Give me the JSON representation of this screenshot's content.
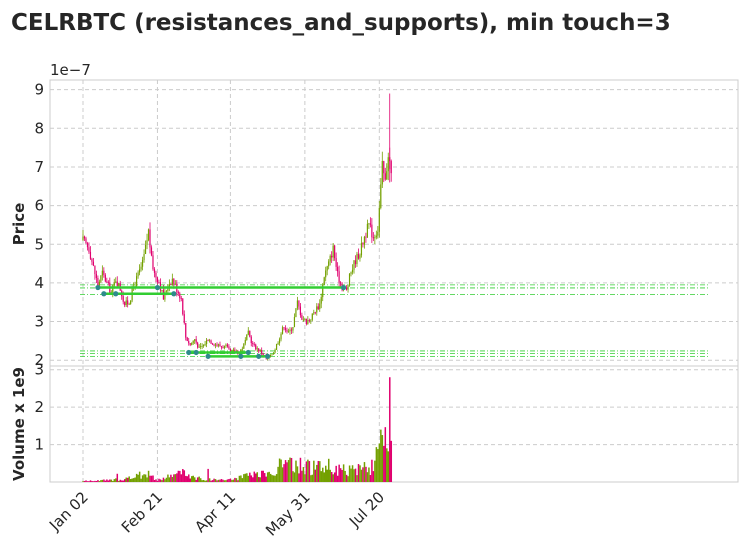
{
  "chart_data": {
    "type": "candlestick",
    "title": "CELRBTC (resistances_and_supports), min touch=3",
    "price_panel": {
      "ylabel": "Price",
      "multiplier_label": "1e−7",
      "ylim": [
        1.85,
        9.25
      ],
      "yticks": [
        2,
        3,
        4,
        5,
        6,
        7,
        8,
        9
      ],
      "grid": true
    },
    "volume_panel": {
      "ylabel": "Volume x 1e9",
      "ylim": [
        0,
        3.1
      ],
      "yticks": [
        1,
        2,
        3
      ],
      "grid": true
    },
    "x_ticks": [
      {
        "label": "Jan 02",
        "day": 0
      },
      {
        "label": "Feb 21",
        "day": 50
      },
      {
        "label": "Apr 11",
        "day": 99
      },
      {
        "label": "May 31",
        "day": 149
      },
      {
        "label": "Jul 20",
        "day": 199
      }
    ],
    "colors": {
      "up": "#73a000",
      "down": "#e0006e",
      "level": "#32cd32",
      "touch": "#2e8b8b"
    },
    "price_path": [
      [
        0,
        5.1
      ],
      [
        4,
        4.9
      ],
      [
        7,
        4.4
      ],
      [
        10,
        3.95
      ],
      [
        13,
        4.25
      ],
      [
        16,
        4.0
      ],
      [
        19,
        3.75
      ],
      [
        22,
        4.1
      ],
      [
        25,
        3.85
      ],
      [
        28,
        3.45
      ],
      [
        31,
        3.5
      ],
      [
        34,
        3.9
      ],
      [
        37,
        4.2
      ],
      [
        40,
        4.5
      ],
      [
        42,
        4.9
      ],
      [
        44,
        5.35
      ],
      [
        46,
        4.6
      ],
      [
        48,
        4.25
      ],
      [
        51,
        4.05
      ],
      [
        54,
        3.6
      ],
      [
        57,
        3.95
      ],
      [
        60,
        4.1
      ],
      [
        63,
        3.85
      ],
      [
        66,
        3.6
      ],
      [
        69,
        2.6
      ],
      [
        72,
        2.4
      ],
      [
        75,
        2.55
      ],
      [
        78,
        2.3
      ],
      [
        81,
        2.4
      ],
      [
        84,
        2.55
      ],
      [
        87,
        2.45
      ],
      [
        90,
        2.4
      ],
      [
        93,
        2.35
      ],
      [
        96,
        2.35
      ],
      [
        99,
        2.2
      ],
      [
        102,
        2.25
      ],
      [
        105,
        2.2
      ],
      [
        108,
        2.4
      ],
      [
        111,
        2.7
      ],
      [
        114,
        2.4
      ],
      [
        117,
        2.3
      ],
      [
        120,
        2.2
      ],
      [
        123,
        2.05
      ],
      [
        126,
        2.1
      ],
      [
        129,
        2.3
      ],
      [
        132,
        2.6
      ],
      [
        135,
        2.9
      ],
      [
        138,
        2.7
      ],
      [
        141,
        2.9
      ],
      [
        144,
        3.5
      ],
      [
        147,
        3.1
      ],
      [
        150,
        3.0
      ],
      [
        153,
        3.1
      ],
      [
        156,
        3.3
      ],
      [
        159,
        3.45
      ],
      [
        162,
        4.2
      ],
      [
        165,
        4.5
      ],
      [
        168,
        4.9
      ],
      [
        171,
        4.2
      ],
      [
        174,
        3.9
      ],
      [
        177,
        3.8
      ],
      [
        180,
        4.3
      ],
      [
        183,
        4.6
      ],
      [
        186,
        4.8
      ],
      [
        189,
        5.2
      ],
      [
        192,
        5.5
      ],
      [
        195,
        5.2
      ],
      [
        198,
        5.4
      ],
      [
        201,
        7.0
      ],
      [
        203,
        6.6
      ],
      [
        205,
        7.4
      ],
      [
        207,
        6.8
      ]
    ],
    "volume_path": [
      [
        0,
        0.03
      ],
      [
        20,
        0.06
      ],
      [
        35,
        0.15
      ],
      [
        42,
        0.3
      ],
      [
        50,
        0.05
      ],
      [
        66,
        0.3
      ],
      [
        80,
        0.08
      ],
      [
        100,
        0.08
      ],
      [
        112,
        0.2
      ],
      [
        125,
        0.25
      ],
      [
        131,
        0.5
      ],
      [
        145,
        0.5
      ],
      [
        160,
        0.45
      ],
      [
        170,
        0.35
      ],
      [
        185,
        0.35
      ],
      [
        195,
        0.55
      ],
      [
        202,
        1.1
      ],
      [
        207,
        1.4
      ]
    ],
    "volume_spikes": [
      {
        "day": 23,
        "value": 0.22
      },
      {
        "day": 44,
        "value": 0.3
      },
      {
        "day": 64,
        "value": 0.3
      },
      {
        "day": 84,
        "value": 0.35
      },
      {
        "day": 112,
        "value": 0.25
      },
      {
        "day": 133,
        "value": 0.6
      },
      {
        "day": 150,
        "value": 0.55
      },
      {
        "day": 165,
        "value": 0.62
      },
      {
        "day": 185,
        "value": 0.48
      },
      {
        "day": 200,
        "value": 1.4
      },
      {
        "day": 204,
        "value": 0.9
      },
      {
        "day": 206,
        "value": 2.8
      },
      {
        "day": 207,
        "value": 1.1
      }
    ],
    "levels": [
      {
        "price": 3.88,
        "start_day": 10,
        "end_day": 175,
        "touches": [
          10,
          50,
          175
        ]
      },
      {
        "price": 3.72,
        "start_day": 14,
        "end_day": 61,
        "touches": [
          14,
          22,
          61
        ]
      },
      {
        "price": 2.2,
        "start_day": 71,
        "end_day": 111,
        "touches": [
          71,
          76,
          111
        ]
      },
      {
        "price": 2.1,
        "start_day": 84,
        "end_day": 124,
        "touches": [
          84,
          106,
          118,
          124
        ]
      }
    ],
    "level_bands": [
      3.95,
      3.87,
      3.7,
      2.24,
      2.17,
      2.1
    ]
  }
}
